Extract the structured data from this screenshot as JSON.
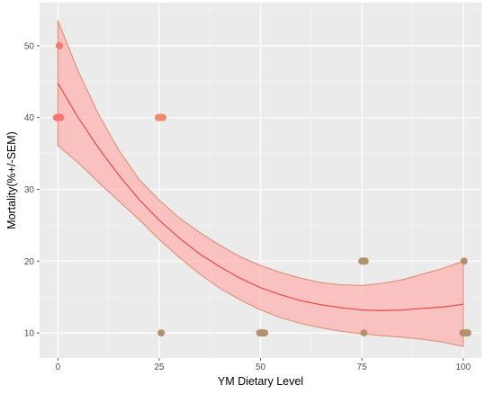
{
  "chart_data": {
    "type": "scatter",
    "title": "",
    "xlabel": "YM Dietary Level",
    "ylabel": "Mortality(%+/-SEM)",
    "xlim": [
      -4.5,
      104.5
    ],
    "ylim": [
      6.5,
      56
    ],
    "x_ticks": [
      0,
      25,
      50,
      75,
      100
    ],
    "y_ticks": [
      10,
      20,
      30,
      40,
      50
    ],
    "grid": true,
    "legend": "none",
    "points": [
      {
        "x": -0.3,
        "y": 40,
        "color": "#f8766d"
      },
      {
        "x": 0,
        "y": 40,
        "color": "#f8766d"
      },
      {
        "x": 0.3,
        "y": 40,
        "color": "#f8766d"
      },
      {
        "x": 0.7,
        "y": 40,
        "color": "#f8766d"
      },
      {
        "x": 0.4,
        "y": 50,
        "color": "#f8766d"
      },
      {
        "x": 24.8,
        "y": 40,
        "color": "#f08a6a"
      },
      {
        "x": 25.1,
        "y": 40,
        "color": "#f08a6a"
      },
      {
        "x": 25.5,
        "y": 40,
        "color": "#f08a6a"
      },
      {
        "x": 25.9,
        "y": 40,
        "color": "#f08a6a"
      },
      {
        "x": 25.5,
        "y": 10,
        "color": "#b4916a"
      },
      {
        "x": 49.8,
        "y": 10,
        "color": "#b4916a"
      },
      {
        "x": 50.2,
        "y": 10,
        "color": "#b4916a"
      },
      {
        "x": 50.6,
        "y": 10,
        "color": "#b4916a"
      },
      {
        "x": 51.0,
        "y": 10,
        "color": "#b4916a"
      },
      {
        "x": 75.0,
        "y": 20,
        "color": "#b4916a"
      },
      {
        "x": 75.4,
        "y": 20,
        "color": "#b4916a"
      },
      {
        "x": 75.8,
        "y": 20,
        "color": "#b4916a"
      },
      {
        "x": 75.5,
        "y": 10,
        "color": "#b4916a"
      },
      {
        "x": 100.2,
        "y": 20,
        "color": "#b4916a"
      },
      {
        "x": 99.9,
        "y": 10,
        "color": "#b4916a"
      },
      {
        "x": 100.3,
        "y": 10,
        "color": "#b4916a"
      },
      {
        "x": 100.7,
        "y": 10,
        "color": "#b4916a"
      },
      {
        "x": 101.1,
        "y": 10,
        "color": "#b4916a"
      }
    ],
    "fit_line": {
      "x": [
        0,
        5,
        10,
        15,
        20,
        25,
        30,
        35,
        40,
        45,
        50,
        55,
        60,
        65,
        70,
        75,
        80,
        85,
        90,
        95,
        100
      ],
      "y": [
        44.8,
        40.0,
        35.8,
        32.0,
        28.6,
        25.7,
        23.2,
        21.0,
        19.2,
        17.6,
        16.3,
        15.3,
        14.5,
        13.9,
        13.5,
        13.2,
        13.1,
        13.2,
        13.4,
        13.6,
        14.0
      ],
      "color": "#e0554a"
    },
    "confidence_band": {
      "x": [
        0,
        5,
        10,
        15,
        20,
        25,
        30,
        35,
        40,
        45,
        50,
        55,
        60,
        65,
        70,
        75,
        80,
        85,
        90,
        95,
        100
      ],
      "upper": [
        53.5,
        46.5,
        40.5,
        35.5,
        31.4,
        28.5,
        26.0,
        24.0,
        22.2,
        20.6,
        19.4,
        18.4,
        17.6,
        17.0,
        16.7,
        16.6,
        16.9,
        17.4,
        18.2,
        19.0,
        20.0
      ],
      "lower": [
        36.1,
        33.7,
        31.0,
        28.4,
        25.8,
        23.0,
        20.5,
        18.2,
        16.2,
        14.6,
        13.2,
        12.1,
        11.3,
        10.7,
        10.2,
        9.9,
        9.6,
        9.4,
        9.1,
        8.7,
        8.1
      ],
      "fill": "#ffb3b3",
      "stroke": "#d98c6a"
    },
    "colors": {
      "panel_background": "#ebebeb",
      "grid_major": "#ffffff",
      "grid_minor": "#f5f5f5"
    }
  }
}
